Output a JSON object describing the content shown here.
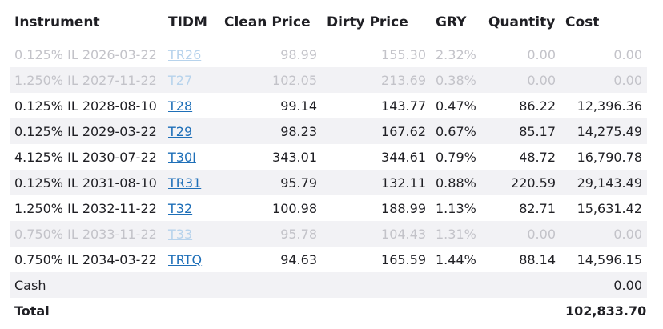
{
  "table": {
    "headers": {
      "instrument": "Instrument",
      "tidm": "TIDM",
      "clean_price": "Clean Price",
      "dirty_price": "Dirty Price",
      "gry": "GRY",
      "quantity": "Quantity",
      "cost": "Cost"
    },
    "rows": [
      {
        "instrument": "0.125% IL 2026-03-22",
        "tidm": "TR26",
        "clean_price": "98.99",
        "dirty_price": "155.30",
        "gry": "2.32%",
        "quantity": "0.00",
        "cost": "0.00",
        "dim": true
      },
      {
        "instrument": "1.250% IL 2027-11-22",
        "tidm": "T27",
        "clean_price": "102.05",
        "dirty_price": "213.69",
        "gry": "0.38%",
        "quantity": "0.00",
        "cost": "0.00",
        "dim": true
      },
      {
        "instrument": "0.125% IL 2028-08-10",
        "tidm": "T28",
        "clean_price": "99.14",
        "dirty_price": "143.77",
        "gry": "0.47%",
        "quantity": "86.22",
        "cost": "12,396.36",
        "dim": false
      },
      {
        "instrument": "0.125% IL 2029-03-22",
        "tidm": "T29",
        "clean_price": "98.23",
        "dirty_price": "167.62",
        "gry": "0.67%",
        "quantity": "85.17",
        "cost": "14,275.49",
        "dim": false
      },
      {
        "instrument": "4.125% IL 2030-07-22",
        "tidm": "T30I",
        "clean_price": "343.01",
        "dirty_price": "344.61",
        "gry": "0.79%",
        "quantity": "48.72",
        "cost": "16,790.78",
        "dim": false
      },
      {
        "instrument": "0.125% IL 2031-08-10",
        "tidm": "TR31",
        "clean_price": "95.79",
        "dirty_price": "132.11",
        "gry": "0.88%",
        "quantity": "220.59",
        "cost": "29,143.49",
        "dim": false
      },
      {
        "instrument": "1.250% IL 2032-11-22",
        "tidm": "T32",
        "clean_price": "100.98",
        "dirty_price": "188.99",
        "gry": "1.13%",
        "quantity": "82.71",
        "cost": "15,631.42",
        "dim": false
      },
      {
        "instrument": "0.750% IL 2033-11-22",
        "tidm": "T33",
        "clean_price": "95.78",
        "dirty_price": "104.43",
        "gry": "1.31%",
        "quantity": "0.00",
        "cost": "0.00",
        "dim": true
      },
      {
        "instrument": "0.750% IL 2034-03-22",
        "tidm": "TRTQ",
        "clean_price": "94.63",
        "dirty_price": "165.59",
        "gry": "1.44%",
        "quantity": "88.14",
        "cost": "14,596.15",
        "dim": false
      }
    ],
    "cash": {
      "label": "Cash",
      "cost": "0.00"
    },
    "total": {
      "label": "Total",
      "cost": "102,833.70"
    }
  }
}
